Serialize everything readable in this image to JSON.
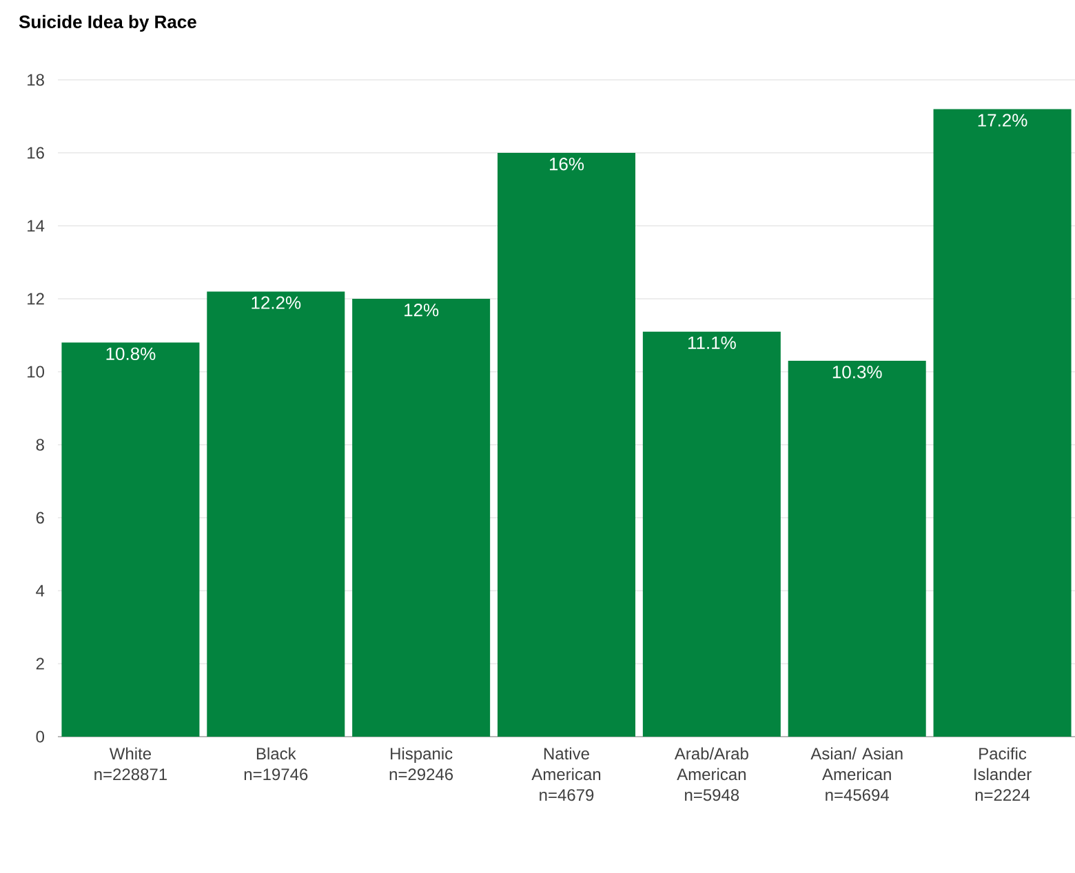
{
  "chart_data": {
    "type": "bar",
    "title": "Suicide Idea by Race",
    "categories": [
      "White n=228871",
      "Black n=19746",
      "Hispanic n=29246",
      "Native American n=4679",
      "Arab/Arab American n=5948",
      "Asian/ Asian American n=45694",
      "Pacific Islander n=2224"
    ],
    "values": [
      10.8,
      12.2,
      12,
      16,
      11.1,
      10.3,
      17.2
    ],
    "value_labels": [
      "10.8%",
      "12.2%",
      "12%",
      "16%",
      "11.1%",
      "10.3%",
      "17.2%"
    ],
    "color": "#03843f",
    "ylim": [
      0,
      18
    ],
    "yticks": [
      0,
      2,
      4,
      6,
      8,
      10,
      12,
      14,
      16,
      18
    ],
    "grid": "y"
  }
}
